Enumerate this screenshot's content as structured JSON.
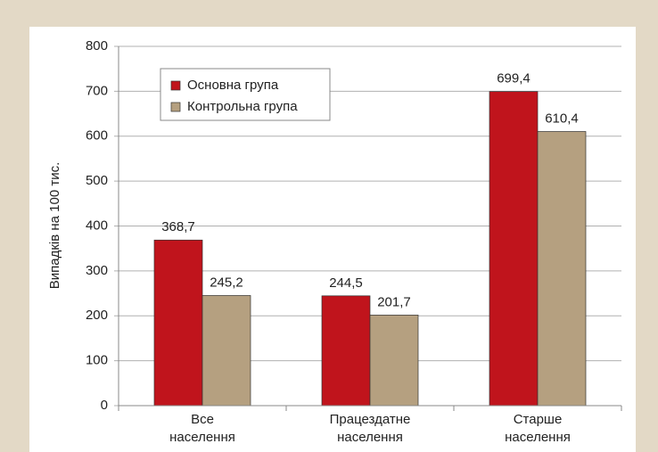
{
  "chart_data": {
    "type": "bar",
    "y_label": "Випадків на 100 тис.",
    "categories": [
      "Все\nнаселення",
      "Працездатне\nнаселення",
      "Старше\nнаселення"
    ],
    "series": [
      {
        "name": "Основна група",
        "color": "#c0141c",
        "values": [
          368.7,
          244.5,
          699.4
        ],
        "value_labels": [
          "368,7",
          "244,5",
          "699,4"
        ]
      },
      {
        "name": "Контрольна група",
        "color": "#b5a080",
        "values": [
          245.2,
          201.7,
          610.4
        ],
        "value_labels": [
          "245,2",
          "201,7",
          "610,4"
        ]
      }
    ],
    "ylim": [
      0,
      800
    ],
    "yticks": [
      0,
      100,
      200,
      300,
      400,
      500,
      600,
      700,
      800
    ],
    "grid": true,
    "legend": "upper left"
  }
}
